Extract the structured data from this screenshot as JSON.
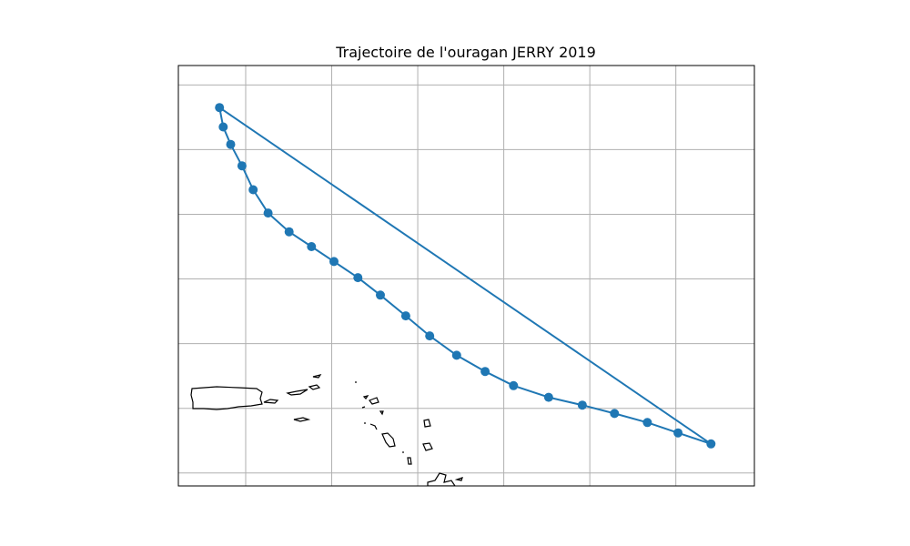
{
  "figure": {
    "title": "Trajectoire de l'ouragan JERRY 2019"
  },
  "chart_data": {
    "type": "map-track",
    "title": "Trajectoire de l'ouragan JERRY 2019",
    "xlabel": "",
    "ylabel": "",
    "grid": true,
    "xlim": [
      -68.6,
      -60.9
    ],
    "ylim": [
      16.0,
      22.5
    ],
    "x_gridlines": [
      -67.7,
      -66.55,
      -65.4,
      -64.25,
      -63.1,
      -61.95
    ],
    "y_gridlines": [
      16.2,
      17.2,
      18.2,
      19.2,
      20.2,
      21.2,
      22.2
    ],
    "series": [
      {
        "color": "#1f77b4",
        "lon": [
          -68.05,
          -68.0,
          -67.9,
          -67.75,
          -67.6,
          -67.4,
          -67.12,
          -66.82,
          -66.52,
          -66.2,
          -65.9,
          -65.56,
          -65.24,
          -64.88,
          -64.5,
          -64.12,
          -63.65,
          -63.2,
          -62.77,
          -62.33,
          -61.92,
          -61.48
        ],
        "lat": [
          21.85,
          21.55,
          21.28,
          20.95,
          20.58,
          20.22,
          19.93,
          19.7,
          19.47,
          19.22,
          18.95,
          18.63,
          18.32,
          18.02,
          17.77,
          17.55,
          17.37,
          17.25,
          17.12,
          16.98,
          16.82,
          16.65
        ]
      }
    ],
    "coastline_color": "#000000",
    "gridline_color": "#b0b0b0",
    "track_color": "#1f77b4"
  }
}
